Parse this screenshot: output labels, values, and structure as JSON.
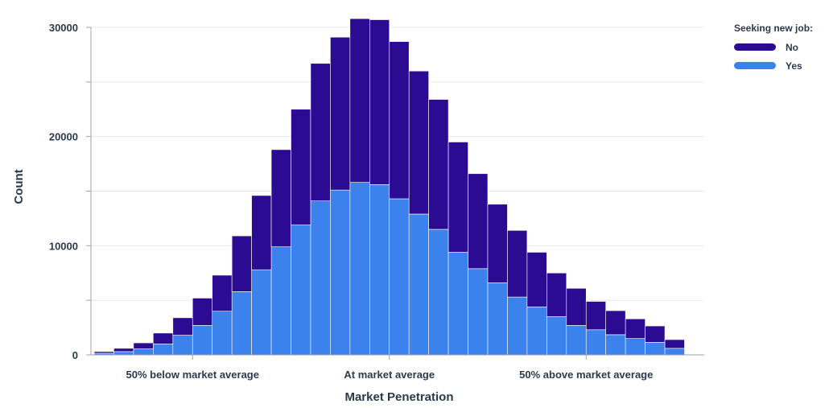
{
  "chart_data": {
    "type": "bar",
    "stacked": true,
    "xlabel": "Market Penetration",
    "ylabel": "Count",
    "ylim": [
      0,
      30000
    ],
    "y_ticks": [
      0,
      10000,
      20000,
      30000
    ],
    "y_ticks_labeled": [
      "0",
      "10000",
      "20000",
      "30000"
    ],
    "x_tick_labels": [
      {
        "label": "50% below market average",
        "bin": 5
      },
      {
        "label": "At market average",
        "bin": 15
      },
      {
        "label": "50% above market average",
        "bin": 25
      }
    ],
    "bins": 30,
    "grid": true,
    "legend": {
      "title": "Seeking new job:",
      "placement": "top-right",
      "entries": [
        {
          "name": "No",
          "color": "#2c0b93"
        },
        {
          "name": "Yes",
          "color": "#3b82ec"
        }
      ]
    },
    "series": [
      {
        "name": "Yes",
        "color": "#3b82ec",
        "values": [
          150,
          300,
          550,
          1000,
          1800,
          2700,
          4000,
          5800,
          7800,
          9900,
          11900,
          14100,
          15100,
          15800,
          15600,
          14300,
          12900,
          11500,
          9400,
          7900,
          6600,
          5300,
          4400,
          3500,
          2700,
          2300,
          1850,
          1500,
          1150,
          600
        ]
      },
      {
        "name": "No",
        "color": "#2c0b93",
        "values": [
          150,
          300,
          550,
          1000,
          1600,
          2500,
          3300,
          5100,
          6800,
          8900,
          10600,
          12600,
          14000,
          15000,
          15100,
          14400,
          13100,
          11900,
          10100,
          8700,
          7200,
          6100,
          5000,
          4000,
          3400,
          2600,
          2200,
          1800,
          1500,
          800
        ]
      }
    ]
  }
}
